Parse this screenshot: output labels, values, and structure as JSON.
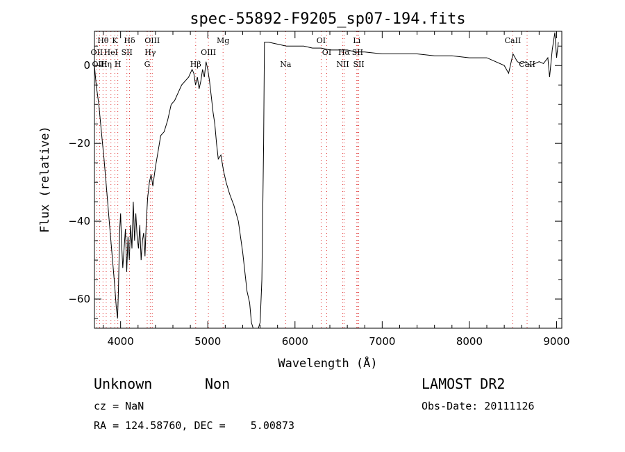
{
  "chart_data": {
    "type": "line",
    "title": "spec-55892-F9205_sp07-194.fits",
    "xlabel": "Wavelength (Å)",
    "ylabel": "Flux (relative)",
    "xlim": [
      3700,
      9060
    ],
    "ylim": [
      -67.5,
      8.8
    ],
    "x_ticks": [
      4000,
      5000,
      6000,
      7000,
      8000,
      9000
    ],
    "y_ticks": [
      0,
      -20,
      -40,
      -60
    ],
    "line_color": "#000000",
    "marker_color": "#e03030",
    "series": [
      {
        "x": [
          3700,
          3720,
          3750,
          3780,
          3810,
          3840,
          3870,
          3900,
          3930,
          3950,
          3965,
          3975,
          3990,
          4000,
          4010,
          4025,
          4040,
          4055,
          4070,
          4085,
          4100,
          4115,
          4130,
          4145,
          4160,
          4175,
          4190,
          4205,
          4220,
          4235,
          4250,
          4265,
          4280,
          4295,
          4310,
          4330,
          4350,
          4370,
          4400,
          4430,
          4460,
          4500,
          4540,
          4580,
          4620,
          4660,
          4700,
          4740,
          4780,
          4820,
          4840,
          4860,
          4880,
          4900,
          4920,
          4940,
          4960,
          4980,
          5000,
          5020,
          5040,
          5060,
          5080,
          5100,
          5120,
          5150,
          5180,
          5210,
          5250,
          5300,
          5350,
          5400,
          5450,
          5480,
          5500,
          5520,
          5540,
          5560,
          5580,
          5600,
          5620,
          5640,
          5650,
          5700,
          5800,
          5900,
          6000,
          6100,
          6200,
          6300,
          6400,
          6500,
          6600,
          6700,
          6800,
          7000,
          7200,
          7400,
          7600,
          7800,
          8000,
          8200,
          8400,
          8450,
          8500,
          8550,
          8600,
          8650,
          8700,
          8750,
          8800,
          8850,
          8900,
          8920,
          8950,
          8980,
          9000,
          9020
        ],
        "y": [
          0,
          -5,
          -10,
          -17,
          -24,
          -32,
          -40,
          -48,
          -56,
          -62,
          -65,
          -58,
          -42,
          -38,
          -45,
          -52,
          -47,
          -42,
          -53,
          -44,
          -50,
          -41,
          -47,
          -35,
          -45,
          -38,
          -44,
          -47,
          -41,
          -50,
          -45,
          -43,
          -49,
          -40,
          -34,
          -30,
          -28,
          -31,
          -26,
          -22,
          -18,
          -17,
          -14,
          -10,
          -9,
          -7,
          -5,
          -4,
          -3,
          -1,
          -2,
          -5,
          -3,
          -6,
          -4,
          -1,
          -3,
          1,
          -1,
          -4,
          -8,
          -12,
          -15,
          -20,
          -24,
          -23,
          -27,
          -30,
          -33,
          -36,
          -40,
          -48,
          -58,
          -61,
          -66,
          -67.5,
          -67.5,
          -67.5,
          -67.5,
          -66,
          -55,
          -20,
          6,
          6,
          5.5,
          5,
          5,
          5,
          4.5,
          4.5,
          4,
          4,
          4,
          3.5,
          3.5,
          3,
          3,
          3,
          2.5,
          2.5,
          2,
          2,
          0,
          -2,
          3,
          1,
          0.5,
          1,
          0,
          0.5,
          1,
          0.5,
          2,
          -3,
          4,
          8.5,
          2,
          6
        ]
      }
    ],
    "lines": [
      {
        "label": "Hθ",
        "w": 3798,
        "row": 1
      },
      {
        "label": "K",
        "w": 3934,
        "row": 1
      },
      {
        "label": "Hδ",
        "w": 4102,
        "row": 1
      },
      {
        "label": "OIII",
        "w": 4363,
        "row": 1
      },
      {
        "label": "Mg",
        "w": 5175,
        "row": 1
      },
      {
        "label": "OI",
        "w": 6300,
        "row": 1
      },
      {
        "label": "Li",
        "w": 6708,
        "row": 1
      },
      {
        "label": "CaII",
        "w": 8498,
        "row": 1
      },
      {
        "label": "OII",
        "w": 3727,
        "row": 2
      },
      {
        "label": "HeI",
        "w": 3889,
        "row": 2
      },
      {
        "label": "SII",
        "w": 4072,
        "row": 2
      },
      {
        "label": "Hγ",
        "w": 4340,
        "row": 2
      },
      {
        "label": "OIII",
        "w": 5007,
        "row": 2
      },
      {
        "label": "OI",
        "w": 6364,
        "row": 2
      },
      {
        "label": "Hα",
        "w": 6563,
        "row": 2
      },
      {
        "label": "SII",
        "w": 6717,
        "row": 2
      },
      {
        "label": "OIII",
        "w": 3760,
        "row": 3
      },
      {
        "label": "Hη",
        "w": 3835,
        "row": 3
      },
      {
        "label": "H",
        "w": 3968,
        "row": 3
      },
      {
        "label": "G",
        "w": 4305,
        "row": 3
      },
      {
        "label": "Hβ",
        "w": 4861,
        "row": 3
      },
      {
        "label": "Na",
        "w": 5893,
        "row": 3
      },
      {
        "label": "NII",
        "w": 6548,
        "row": 3
      },
      {
        "label": "SII",
        "w": 6731,
        "row": 3
      },
      {
        "label": "CaII",
        "w": 8662,
        "row": 3
      }
    ]
  },
  "info": {
    "class": "Unknown",
    "subclass": "Non",
    "survey": "LAMOST DR2",
    "cz": "cz = NaN",
    "obs_date": "Obs-Date: 20111126",
    "radec": "RA = 124.58760, DEC =    5.00873"
  }
}
